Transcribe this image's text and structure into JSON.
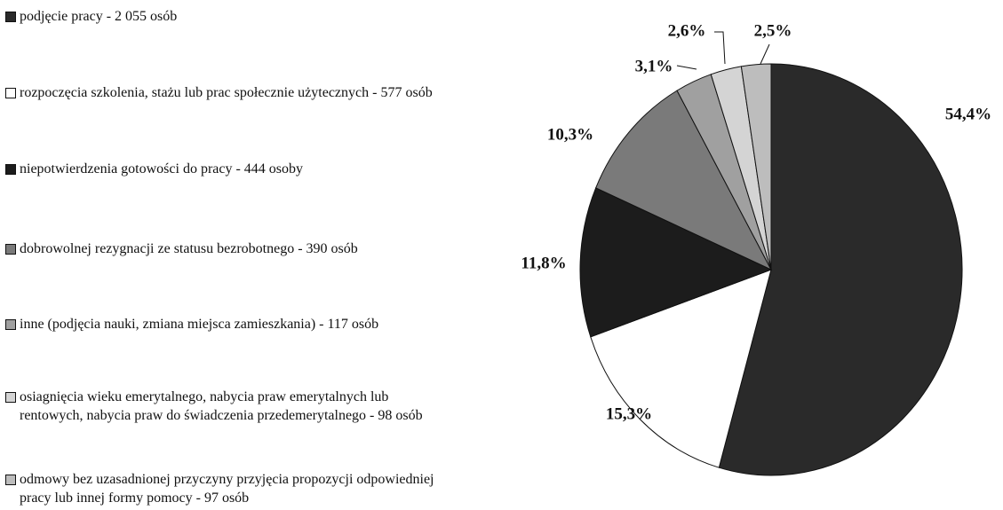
{
  "chart_data": {
    "type": "pie",
    "categories": [
      "podjęcie pracy - 2 055 osób",
      "rozpoczęcia szkolenia, stażu lub prac społecznie użytecznych - 577 osób",
      "niepotwierdzenia gotowości do pracy - 444 osoby",
      "dobrowolnej rezygnacji ze statusu bezrobotnego - 390 osób",
      "inne (podjęcia nauki, zmiana miejsca zamieszkania) - 117 osób",
      "osiagnięcia wieku emerytalnego, nabycia praw emerytalnych lub rentowych, nabycia praw do świadczenia przedemerytalnego - 98 osób",
      "odmowy bez uzasadnionej przyczyny przyjęcia propozycji odpowiedniej pracy lub innej formy pomocy - 97 osób"
    ],
    "values": [
      54.4,
      15.3,
      11.8,
      10.3,
      3.1,
      2.6,
      2.5
    ],
    "value_labels": [
      "54,4%",
      "15,3%",
      "11,8%",
      "10,3%",
      "3,1%",
      "2,6%",
      "2,5%"
    ],
    "colors": [
      "#2a2a2a",
      "#ffffff",
      "#1c1c1c",
      "#7a7a7a",
      "#a0a0a0",
      "#d4d4d4",
      "#bdbdbd"
    ]
  }
}
